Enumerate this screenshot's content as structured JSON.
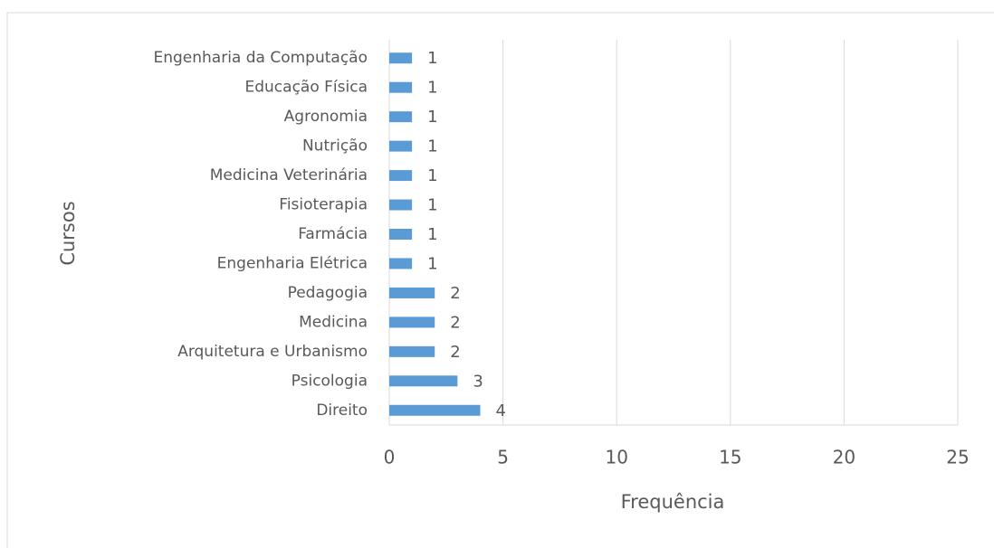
{
  "chart_data": {
    "type": "bar",
    "orientation": "horizontal",
    "x_label": "Frequência",
    "y_label": "Cursos",
    "categories": [
      "Engenharia da Computação",
      "Educação Física",
      "Agronomia",
      "Nutrição",
      "Medicina Veterinária",
      "Fisioterapia",
      "Farmácia",
      "Engenharia Elétrica",
      "Pedagogia",
      "Medicina",
      "Arquitetura e Urbanismo",
      "Psicologia",
      "Direito"
    ],
    "values": [
      1,
      1,
      1,
      1,
      1,
      1,
      1,
      1,
      2,
      2,
      2,
      3,
      4
    ],
    "color": "#5b9bd5",
    "xlim": [
      0,
      25
    ],
    "xticks": [
      0,
      5,
      10,
      15,
      20,
      25
    ],
    "grid": true
  }
}
